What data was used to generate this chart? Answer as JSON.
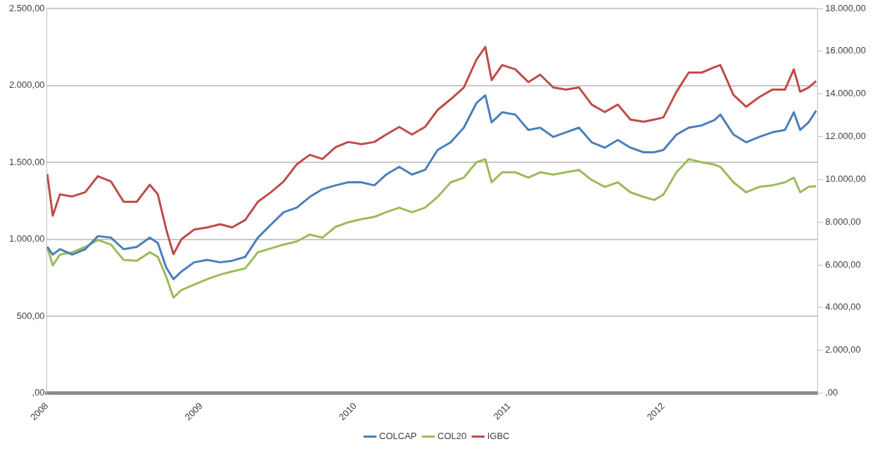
{
  "chart_data": {
    "type": "line",
    "x": [
      "2008-01-02",
      "2008-01-15",
      "2008-02-01",
      "2008-03-01",
      "2008-04-01",
      "2008-05-01",
      "2008-06-01",
      "2008-07-01",
      "2008-08-01",
      "2008-09-01",
      "2008-09-20",
      "2008-10-10",
      "2008-10-27",
      "2008-11-15",
      "2008-12-15",
      "2009-01-15",
      "2009-02-15",
      "2009-03-15",
      "2009-04-15",
      "2009-05-15",
      "2009-06-15",
      "2009-07-15",
      "2009-08-15",
      "2009-09-15",
      "2009-10-15",
      "2009-11-15",
      "2009-12-15",
      "2010-01-15",
      "2010-02-15",
      "2010-03-15",
      "2010-04-15",
      "2010-05-15",
      "2010-06-15",
      "2010-07-15",
      "2010-08-15",
      "2010-09-15",
      "2010-10-15",
      "2010-11-05",
      "2010-11-20",
      "2010-12-15",
      "2011-01-15",
      "2011-02-15",
      "2011-03-15",
      "2011-04-15",
      "2011-05-15",
      "2011-06-15",
      "2011-07-15",
      "2011-08-15",
      "2011-09-15",
      "2011-10-15",
      "2011-11-15",
      "2011-12-10",
      "2012-01-01",
      "2012-02-01",
      "2012-03-01",
      "2012-04-01",
      "2012-05-01",
      "2012-05-15",
      "2012-06-15",
      "2012-07-15",
      "2012-08-15",
      "2012-09-15",
      "2012-10-15",
      "2012-11-05",
      "2012-11-20",
      "2012-12-10",
      "2012-12-28"
    ],
    "series": [
      {
        "name": "COLCAP",
        "color": "#4a7ebb",
        "values": [
          950,
          900,
          935,
          900,
          935,
          1020,
          1010,
          935,
          950,
          1010,
          975,
          815,
          740,
          790,
          850,
          865,
          850,
          860,
          885,
          1010,
          1095,
          1175,
          1205,
          1275,
          1325,
          1350,
          1370,
          1370,
          1350,
          1420,
          1470,
          1420,
          1450,
          1580,
          1630,
          1725,
          1885,
          1935,
          1760,
          1825,
          1810,
          1710,
          1725,
          1665,
          1695,
          1725,
          1630,
          1595,
          1645,
          1595,
          1565,
          1565,
          1580,
          1680,
          1725,
          1740,
          1775,
          1810,
          1680,
          1630,
          1665,
          1695,
          1710,
          1825,
          1710,
          1760,
          1835
        ]
      },
      {
        "name": "COL20",
        "color": "#9bbb59",
        "values": [
          950,
          830,
          900,
          915,
          950,
          995,
          965,
          865,
          860,
          915,
          885,
          755,
          620,
          670,
          705,
          740,
          770,
          790,
          810,
          915,
          940,
          965,
          985,
          1030,
          1010,
          1080,
          1110,
          1130,
          1145,
          1175,
          1205,
          1175,
          1205,
          1275,
          1370,
          1400,
          1500,
          1520,
          1370,
          1435,
          1435,
          1400,
          1435,
          1420,
          1435,
          1450,
          1385,
          1340,
          1370,
          1305,
          1275,
          1255,
          1290,
          1435,
          1520,
          1500,
          1485,
          1470,
          1370,
          1305,
          1340,
          1350,
          1370,
          1400,
          1305,
          1340,
          1345
        ]
      },
      {
        "name": "IGBC",
        "color": "#be4b48",
        "axis": "y2",
        "values": [
          10250,
          8300,
          9300,
          9200,
          9400,
          10150,
          9900,
          8950,
          8950,
          9750,
          9300,
          7650,
          6500,
          7200,
          7650,
          7750,
          7900,
          7750,
          8100,
          8950,
          9400,
          9900,
          10700,
          11150,
          10950,
          11500,
          11750,
          11650,
          11750,
          12100,
          12450,
          12100,
          12450,
          13250,
          13750,
          14300,
          15600,
          16200,
          14650,
          15350,
          15150,
          14550,
          14900,
          14300,
          14200,
          14300,
          13500,
          13150,
          13500,
          12800,
          12700,
          12800,
          12900,
          14100,
          15000,
          15000,
          15250,
          15350,
          13950,
          13400,
          13850,
          14200,
          14200,
          15150,
          14100,
          14300,
          14600
        ]
      }
    ],
    "xlim": [
      "2008-01-01",
      "2012-12-31"
    ],
    "xticks": [
      "2008",
      "2009",
      "2010",
      "2011",
      "2012"
    ],
    "ylim": [
      0,
      2500
    ],
    "yticks": [
      {
        "value": 0,
        "label": ",00"
      },
      {
        "value": 500,
        "label": "500,00"
      },
      {
        "value": 1000,
        "label": "1.000,00"
      },
      {
        "value": 1500,
        "label": "1.500,00"
      },
      {
        "value": 2000,
        "label": "2.000,00"
      },
      {
        "value": 2500,
        "label": "2.500,00"
      }
    ],
    "y2lim": [
      0,
      18000
    ],
    "y2ticks": [
      {
        "value": 0,
        "label": ",00"
      },
      {
        "value": 2000,
        "label": "2.000,00"
      },
      {
        "value": 4000,
        "label": "4.000,00"
      },
      {
        "value": 6000,
        "label": "6.000,00"
      },
      {
        "value": 8000,
        "label": "8.000,00"
      },
      {
        "value": 10000,
        "label": "10.000,00"
      },
      {
        "value": 12000,
        "label": "12.000,00"
      },
      {
        "value": 14000,
        "label": "14.000,00"
      },
      {
        "value": 16000,
        "label": "16.000,00"
      },
      {
        "value": 18000,
        "label": "18.000,00"
      }
    ],
    "grid": "y",
    "legend": "bottom",
    "marker": "none",
    "line_style": "solid"
  }
}
